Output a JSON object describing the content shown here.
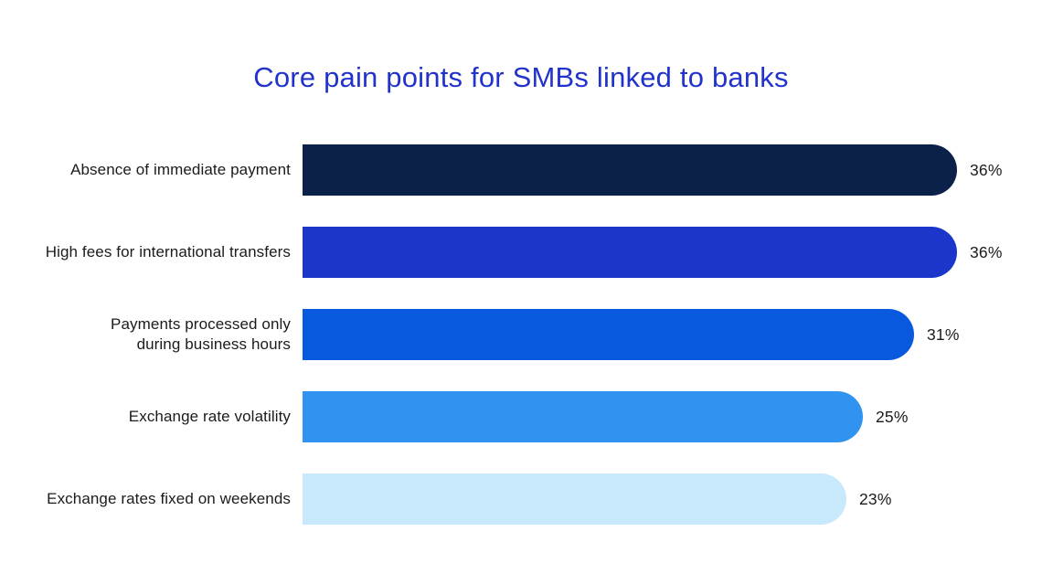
{
  "title_color": "#2233cb",
  "chart_data": {
    "type": "bar",
    "orientation": "horizontal",
    "title": "Core pain points for SMBs linked to banks",
    "categories": [
      "Absence of immediate payment",
      "High fees for international transfers",
      "Payments processed only during business hours",
      "Exchange rate volatility",
      "Exchange rates fixed on weekends"
    ],
    "values": [
      36,
      36,
      31,
      25,
      23
    ],
    "unit": "%",
    "axis": "none",
    "grid": false,
    "legend": "none",
    "rows": [
      {
        "label_lines": [
          "Absence of immediate payment"
        ],
        "value": 36,
        "value_label": "36%",
        "color": "#0b2149"
      },
      {
        "label_lines": [
          "High fees for international transfers"
        ],
        "value": 36,
        "value_label": "36%",
        "color": "#1c36cc"
      },
      {
        "label_lines": [
          "Payments processed only",
          "during business hours"
        ],
        "value": 31,
        "value_label": "31%",
        "color": "#0859dd"
      },
      {
        "label_lines": [
          "Exchange rate volatility"
        ],
        "value": 25,
        "value_label": "25%",
        "color": "#3093f0"
      },
      {
        "label_lines": [
          "Exchange rates fixed on weekends"
        ],
        "value": 23,
        "value_label": "23%",
        "color": "#c8e9fb"
      }
    ]
  }
}
